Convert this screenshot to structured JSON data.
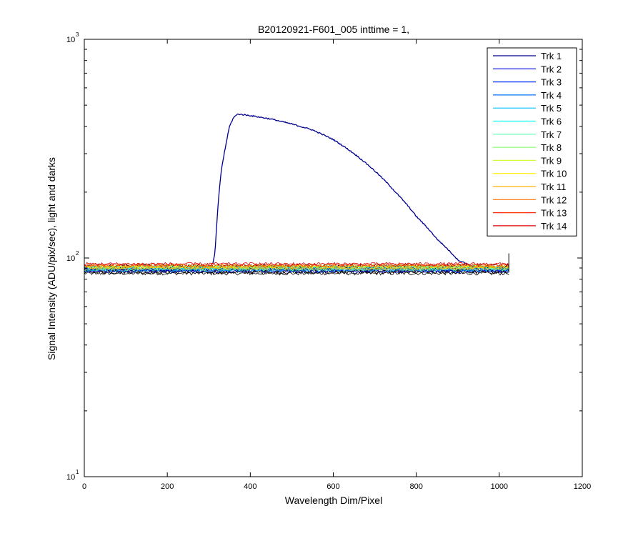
{
  "chart_data": {
    "type": "line",
    "title": "B20120921-F601_005 inttime = 1,",
    "xlabel": "Wavelength Dim/Pixel",
    "ylabel": "Signal Intensity (ADU/pix/sec), light and darks",
    "xlim": [
      0,
      1200
    ],
    "ylim": [
      10,
      1000
    ],
    "yscale": "log",
    "xticks": [
      0,
      200,
      400,
      600,
      800,
      1000,
      1200
    ],
    "xtick_labels": [
      "0",
      "200",
      "400",
      "600",
      "800",
      "1000",
      "1200"
    ],
    "yticks": [
      10,
      100,
      1000
    ],
    "ytick_labels": [
      {
        "base": "10",
        "exp": "1"
      },
      {
        "base": "10",
        "exp": "2"
      },
      {
        "base": "10",
        "exp": "3"
      }
    ],
    "grid": false,
    "legend_position": "top-right",
    "series": [
      {
        "name": "Trk 1",
        "color": "#00008F",
        "points": [
          [
            0,
            89
          ],
          [
            50,
            89
          ],
          [
            100,
            88
          ],
          [
            150,
            88
          ],
          [
            200,
            88
          ],
          [
            250,
            88
          ],
          [
            300,
            89
          ],
          [
            310,
            95
          ],
          [
            315,
            105
          ],
          [
            320,
            150
          ],
          [
            325,
            200
          ],
          [
            330,
            250
          ],
          [
            340,
            320
          ],
          [
            350,
            400
          ],
          [
            360,
            440
          ],
          [
            370,
            455
          ],
          [
            400,
            448
          ],
          [
            450,
            432
          ],
          [
            500,
            410
          ],
          [
            550,
            385
          ],
          [
            600,
            348
          ],
          [
            650,
            300
          ],
          [
            700,
            250
          ],
          [
            750,
            200
          ],
          [
            800,
            155
          ],
          [
            850,
            122
          ],
          [
            900,
            98
          ],
          [
            950,
            89
          ],
          [
            1000,
            88
          ],
          [
            1023,
            88
          ]
        ]
      },
      {
        "name": "Trk 2",
        "color": "#0000DF",
        "level": 87
      },
      {
        "name": "Trk 3",
        "color": "#0030FF",
        "level": 89
      },
      {
        "name": "Trk 4",
        "color": "#0070FF",
        "level": 90
      },
      {
        "name": "Trk 5",
        "color": "#00BFFF",
        "level": 88
      },
      {
        "name": "Trk 6",
        "color": "#10FFEF",
        "level": 91
      },
      {
        "name": "Trk 7",
        "color": "#50FFAF",
        "level": 90
      },
      {
        "name": "Trk 8",
        "color": "#90FF6F",
        "level": 89
      },
      {
        "name": "Trk 9",
        "color": "#CFFF30",
        "level": 92
      },
      {
        "name": "Trk 10",
        "color": "#FFEF00",
        "level": 91
      },
      {
        "name": "Trk 11",
        "color": "#FFAF00",
        "level": 90
      },
      {
        "name": "Trk 12",
        "color": "#FF7000",
        "level": 92
      },
      {
        "name": "Trk 13",
        "color": "#FF3000",
        "level": 93
      },
      {
        "name": "Trk 14",
        "color": "#DF0000",
        "level": 94
      }
    ],
    "darks_color": "#000000",
    "darks_levels": [
      85,
      86,
      87,
      88,
      89,
      90,
      91,
      92
    ]
  }
}
